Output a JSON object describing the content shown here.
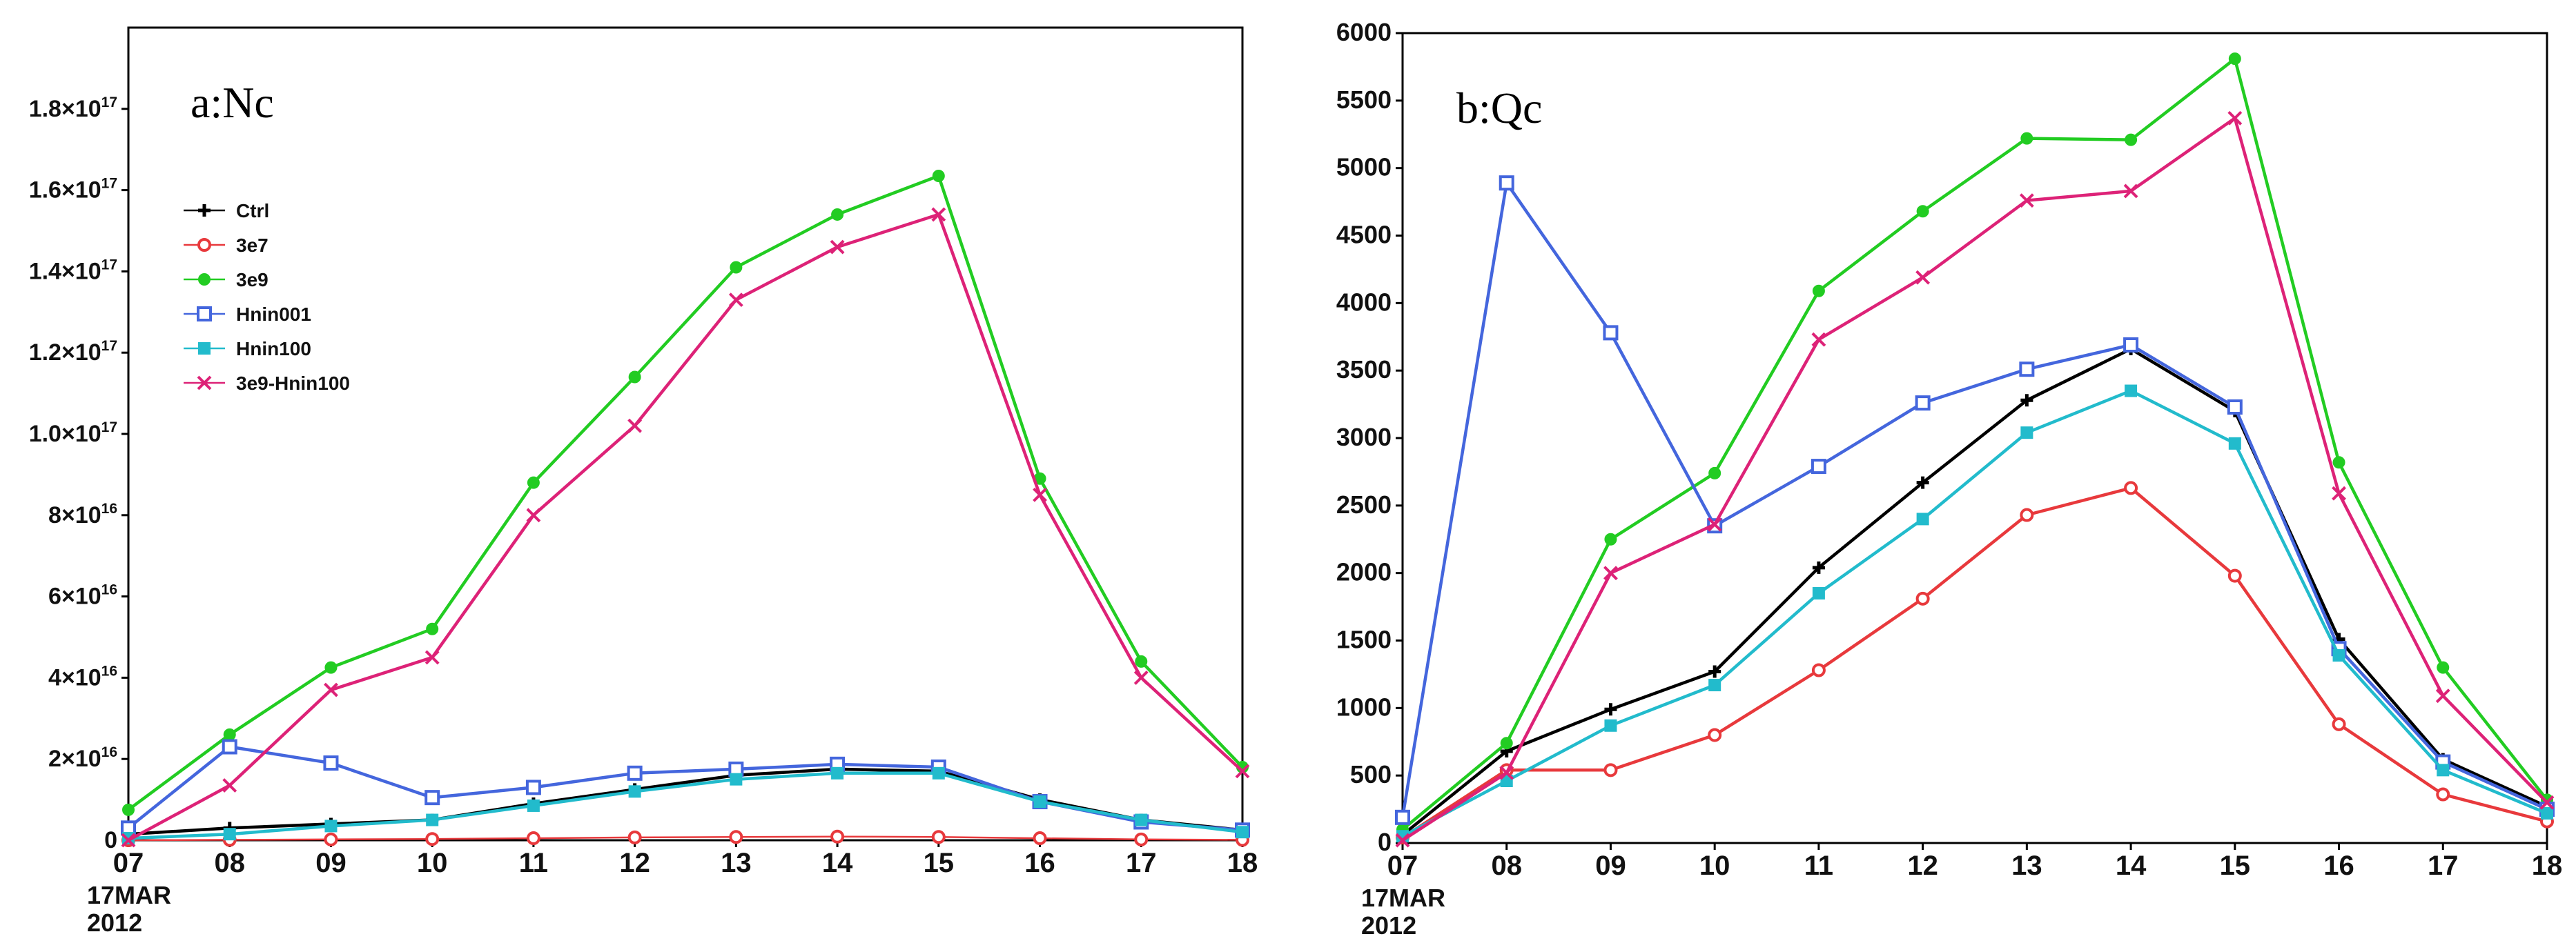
{
  "chart_data": [
    {
      "type": "line",
      "title": "a:Nc",
      "x_ticks": [
        "07",
        "08",
        "09",
        "10",
        "11",
        "12",
        "13",
        "14",
        "15",
        "16",
        "17",
        "18"
      ],
      "x_start_label": [
        "17MAR",
        "2012"
      ],
      "ylim": [
        0,
        2e+17
      ],
      "y_ticks": [
        0,
        2e+16,
        4e+16,
        6e+16,
        8e+16,
        1e+17,
        1.2e+17,
        1.4e+17,
        1.6e+17,
        1.8e+17
      ],
      "y_tick_labels": [
        {
          "mant": "0",
          "exp": ""
        },
        {
          "mant": "2×10",
          "exp": "16"
        },
        {
          "mant": "4×10",
          "exp": "16"
        },
        {
          "mant": "6×10",
          "exp": "16"
        },
        {
          "mant": "8×10",
          "exp": "16"
        },
        {
          "mant": "1.0×10",
          "exp": "17"
        },
        {
          "mant": "1.2×10",
          "exp": "17"
        },
        {
          "mant": "1.4×10",
          "exp": "17"
        },
        {
          "mant": "1.6×10",
          "exp": "17"
        },
        {
          "mant": "1.8×10",
          "exp": "17"
        }
      ],
      "legend": "upper-left",
      "series": [
        {
          "name": "Ctrl",
          "color": "#000000",
          "marker": "plus",
          "values": [
            1500000000000000.0,
            3000000000000000.0,
            4000000000000000.0,
            5000000000000000.0,
            9000000000000000.0,
            1.25e+16,
            1.6e+16,
            1.75e+16,
            1.7e+16,
            1e+16,
            5000000000000000.0,
            2500000000000000.0
          ]
        },
        {
          "name": "3e7",
          "color": "#e8393c",
          "marker": "circle",
          "values": [
            0,
            100000000000000.0,
            200000000000000.0,
            300000000000000.0,
            500000000000000.0,
            700000000000000.0,
            800000000000000.0,
            900000000000000.0,
            800000000000000.0,
            500000000000000.0,
            200000000000000.0,
            100000000000000.0
          ]
        },
        {
          "name": "3e9",
          "color": "#22cc22",
          "marker": "dot",
          "values": [
            7500000000000000.0,
            2.6e+16,
            4.25e+16,
            5.2e+16,
            8.8e+16,
            1.14e+17,
            1.41e+17,
            1.54e+17,
            1.635e+17,
            8.9e+16,
            4.4e+16,
            1.8e+16
          ]
        },
        {
          "name": "Hnin001",
          "color": "#4466dd",
          "marker": "square",
          "values": [
            3000000000000000.0,
            2.3e+16,
            1.9e+16,
            1.05e+16,
            1.3e+16,
            1.65e+16,
            1.75e+16,
            1.87e+16,
            1.8e+16,
            9500000000000000.0,
            4500000000000000.0,
            2500000000000000.0
          ]
        },
        {
          "name": "Hnin100",
          "color": "#22bbcc",
          "marker": "filledsquare",
          "values": [
            500000000000000.0,
            1500000000000000.0,
            3500000000000000.0,
            5000000000000000.0,
            8500000000000000.0,
            1.2e+16,
            1.5e+16,
            1.65e+16,
            1.65e+16,
            9500000000000000.0,
            5000000000000000.0,
            2000000000000000.0
          ]
        },
        {
          "name": "3e9-Hnin100",
          "color": "#dd2277",
          "marker": "x",
          "values": [
            0,
            1.35e+16,
            3.7e+16,
            4.5e+16,
            8e+16,
            1.02e+17,
            1.33e+17,
            1.46e+17,
            1.54e+17,
            8.5e+16,
            4e+16,
            1.7e+16
          ]
        }
      ]
    },
    {
      "type": "line",
      "title": "b:Qc",
      "x_ticks": [
        "07",
        "08",
        "09",
        "10",
        "11",
        "12",
        "13",
        "14",
        "15",
        "16",
        "17",
        "18"
      ],
      "x_start_label": [
        "17MAR",
        "2012"
      ],
      "ylim": [
        0,
        6000
      ],
      "y_ticks": [
        0,
        500,
        1000,
        1500,
        2000,
        2500,
        3000,
        3500,
        4000,
        4500,
        5000,
        5500,
        6000
      ],
      "y_tick_labels": [
        "0",
        "500",
        "1000",
        "1500",
        "2000",
        "2500",
        "3000",
        "3500",
        "4000",
        "4500",
        "5000",
        "5500",
        "6000"
      ],
      "series": [
        {
          "name": "Ctrl",
          "color": "#000000",
          "marker": "plus",
          "values": [
            60,
            680,
            990,
            1270,
            2040,
            2670,
            3280,
            3660,
            3200,
            1510,
            620,
            270
          ]
        },
        {
          "name": "3e7",
          "color": "#e8393c",
          "marker": "circle",
          "values": [
            40,
            540,
            540,
            800,
            1280,
            1810,
            2430,
            2630,
            1980,
            880,
            360,
            160
          ]
        },
        {
          "name": "3e9",
          "color": "#22cc22",
          "marker": "dot",
          "values": [
            100,
            740,
            2250,
            2740,
            4090,
            4680,
            5220,
            5210,
            5810,
            2820,
            1300,
            320
          ]
        },
        {
          "name": "Hnin001",
          "color": "#4466dd",
          "marker": "square",
          "values": [
            190,
            4890,
            3780,
            2350,
            2790,
            3260,
            3510,
            3690,
            3230,
            1440,
            600,
            250
          ]
        },
        {
          "name": "Hnin100",
          "color": "#22bbcc",
          "marker": "filledsquare",
          "values": [
            50,
            460,
            870,
            1170,
            1850,
            2400,
            3040,
            3350,
            2960,
            1390,
            540,
            220
          ]
        },
        {
          "name": "3e9-Hnin100",
          "color": "#dd2277",
          "marker": "x",
          "values": [
            20,
            520,
            2000,
            2360,
            3730,
            4190,
            4760,
            4830,
            5370,
            2590,
            1090,
            300
          ]
        }
      ]
    }
  ]
}
